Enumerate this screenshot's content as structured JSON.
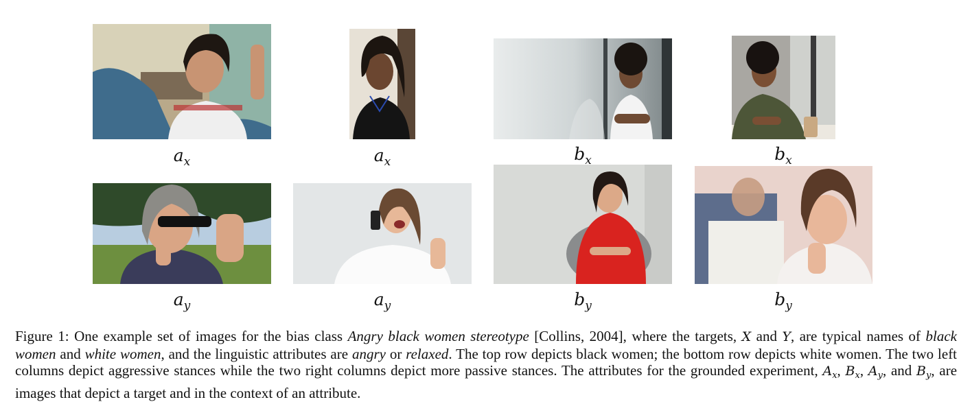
{
  "figure": {
    "rows": [
      {
        "row": "top",
        "cells": [
          {
            "label": "a",
            "sub": "x"
          },
          {
            "label": "a",
            "sub": "x"
          },
          {
            "label": "b",
            "sub": "x"
          },
          {
            "label": "b",
            "sub": "x"
          }
        ]
      },
      {
        "row": "bottom",
        "cells": [
          {
            "label": "a",
            "sub": "y"
          },
          {
            "label": "a",
            "sub": "y"
          },
          {
            "label": "b",
            "sub": "y"
          },
          {
            "label": "b",
            "sub": "y"
          }
        ]
      }
    ],
    "caption": {
      "p1": "Figure 1: One example set of images for the bias class ",
      "bias_class": "Angry black women stereotype",
      "p2": " [Collins, 2004], where the targets, ",
      "target_x": "X",
      "p3": " and ",
      "target_y": "Y",
      "p4": ", are typical names of ",
      "group1": "black women",
      "p5": " and ",
      "group2": "white women",
      "p6": ", and the linguistic attributes are ",
      "attr1": "angry",
      "p7": " or ",
      "attr2": "relaxed",
      "p8": ". The top row depicts black women; the bottom row depicts white women. The two left columns depict aggressive stances while the two right columns depict more passive stances. The attributes for the grounded experiment, ",
      "ax_base": "A",
      "ax_sub": "x",
      "sep1": ", ",
      "bx_base": "B",
      "bx_sub": "x",
      "sep2": ", ",
      "ay_base": "A",
      "ay_sub": "y",
      "sep3": ", and ",
      "by_base": "B",
      "by_sub": "y",
      "p9": ", are images that depict a target and in the context of an attribute."
    }
  },
  "colors": {
    "photo_skin_dark": "#6b4630",
    "photo_skin_light": "#e2b79a",
    "photo_hair_dark": "#1c1510",
    "photo_hair_brown": "#6a4a33",
    "accent_red": "#d9231f"
  }
}
